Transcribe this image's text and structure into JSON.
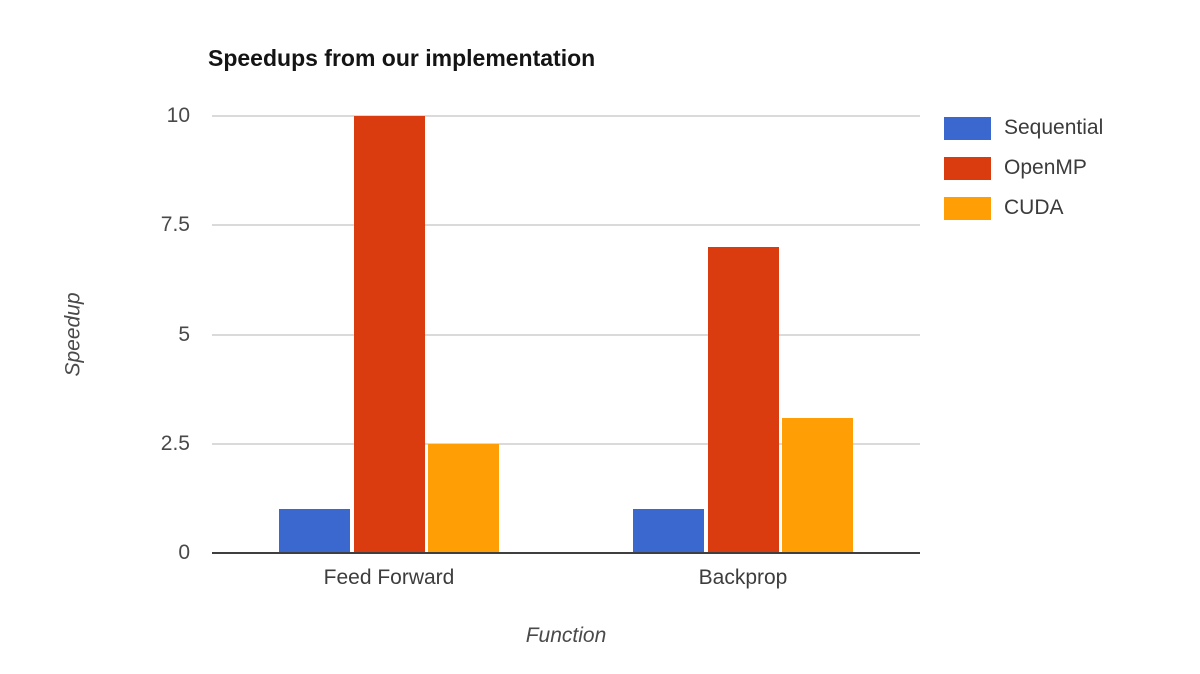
{
  "chart_data": {
    "type": "bar",
    "title": "Speedups from our implementation",
    "xlabel": "Function",
    "ylabel": "Speedup",
    "categories": [
      "Feed Forward",
      "Backprop"
    ],
    "series": [
      {
        "name": "Sequential",
        "color": "#3B68CE",
        "values": [
          1,
          1
        ]
      },
      {
        "name": "OpenMP",
        "color": "#DA3B0F",
        "values": [
          10,
          7
        ]
      },
      {
        "name": "CUDA",
        "color": "#FF9F05",
        "values": [
          2.5,
          3.1
        ]
      }
    ],
    "ylim": [
      0,
      10
    ],
    "yticks": [
      0,
      2.5,
      5,
      7.5,
      10
    ],
    "grid": true,
    "legend_position": "right"
  },
  "colors": {
    "gridline": "#dadada",
    "axis_baseline": "#3f3f3f",
    "title_text": "#141414",
    "tick_text": "#494949",
    "axis_title_text": "#4a4a4a",
    "legend_text": "#3b3b3b"
  }
}
